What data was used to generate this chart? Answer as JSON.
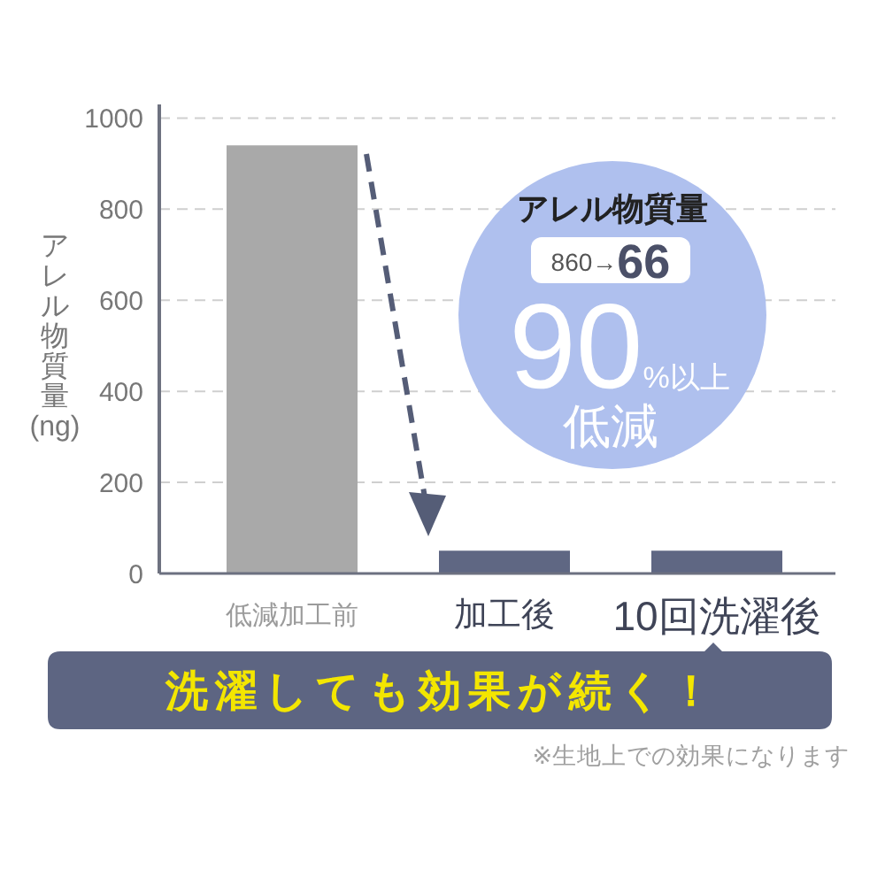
{
  "chart_data": {
    "type": "bar",
    "ylabel": "アレル物質量(ng)",
    "categories": [
      "低減加工前",
      "加工後",
      "10回洗濯後"
    ],
    "values": [
      940,
      50,
      50
    ],
    "colors": [
      "#a9a9a9",
      "#5f6783",
      "#5f6783"
    ],
    "ylim": [
      0,
      1030
    ],
    "yticks": [
      0,
      200,
      400,
      600,
      800,
      1000
    ],
    "grid": "y",
    "annotations": [
      "アレル物質量",
      "860→66",
      "90%以上",
      "低減",
      "洗濯しても効果が続く！",
      "※生地上での効果になります"
    ]
  }
}
